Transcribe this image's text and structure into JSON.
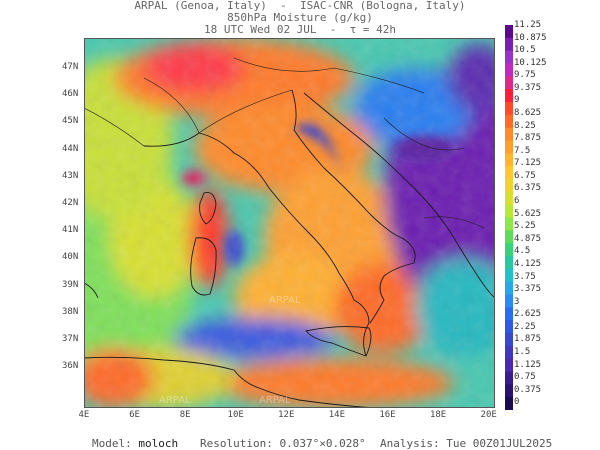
{
  "header": {
    "line1": "ARPAL (Genoa, Italy)  -  ISAC-CNR (Bologna, Italy)",
    "line2": "850hPa Moisture (g/kg)",
    "line3": "18 UTC Wed 02 JUL  -  τ = 42h"
  },
  "map": {
    "lat_labels": [
      "47N",
      "46N",
      "45N",
      "44N",
      "43N",
      "42N",
      "41N",
      "40N",
      "39N",
      "38N",
      "37N",
      "36N"
    ],
    "lon_labels": [
      "4E",
      "6E",
      "8E",
      "10E",
      "12E",
      "14E",
      "16E",
      "18E",
      "20E"
    ],
    "watermark": "ARPAL"
  },
  "colorbar": {
    "labels": [
      "11.25",
      "10.875",
      "10.5",
      "10.125",
      "9.75",
      "9.375",
      "9",
      "8.625",
      "8.25",
      "7.875",
      "7.5",
      "7.125",
      "6.75",
      "6.375",
      "6",
      "5.625",
      "5.25",
      "4.875",
      "4.5",
      "4.125",
      "3.75",
      "3.375",
      "3",
      "2.625",
      "2.25",
      "1.875",
      "1.5",
      "1.125",
      "0.75",
      "0.375",
      "0"
    ],
    "colors": [
      "#5a0a8a",
      "#7a1fb0",
      "#9a32c8",
      "#c02ac0",
      "#e02a8a",
      "#ff1f3a",
      "#ff4a2a",
      "#ff6a28",
      "#ff8a2a",
      "#ffa02e",
      "#ffb52e",
      "#ffc830",
      "#f0d430",
      "#d8e030",
      "#b8e838",
      "#8ce84a",
      "#5cdc5a",
      "#38d27a",
      "#28c8a0",
      "#22c0c8",
      "#28a8e8",
      "#2a8cf0",
      "#2a6ef0",
      "#3058e0",
      "#3a48d0",
      "#4238c0",
      "#4a2ab0",
      "#3a1e90",
      "#2a1270",
      "#1a0a50"
    ]
  },
  "footer": {
    "model_label": "Model:",
    "model_value": "moloch",
    "resolution_label": "Resolution:",
    "resolution_value": "0.037°×0.028°",
    "analysis_label": "Analysis:",
    "analysis_value": "Tue 00Z01JUL2025"
  }
}
